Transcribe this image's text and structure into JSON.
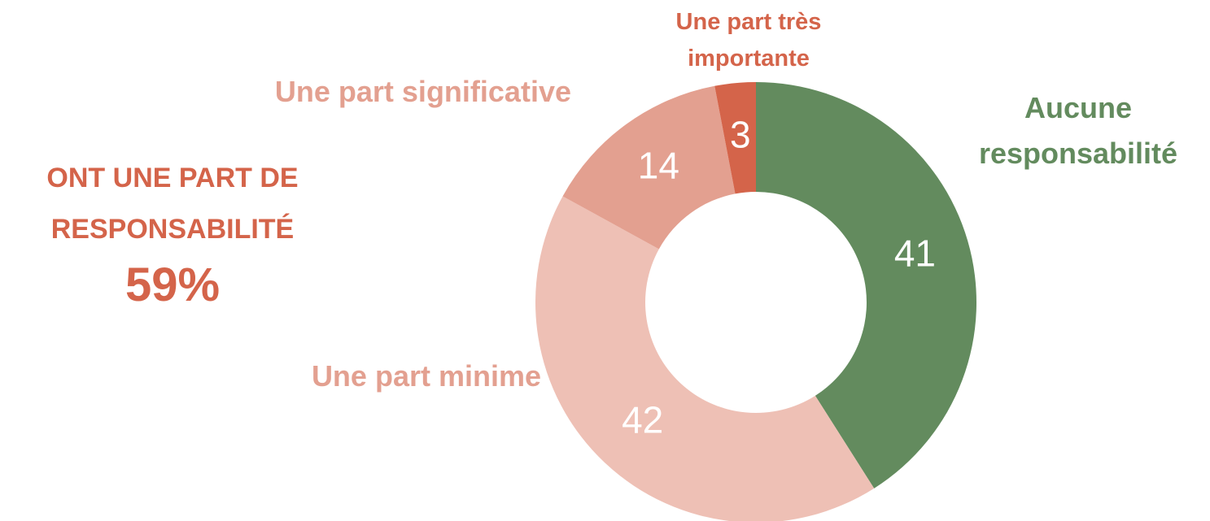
{
  "chart_data": {
    "type": "donut",
    "categories": [
      "Aucune responsabilité",
      "Une part minime",
      "Une part significative",
      "Une part très importante"
    ],
    "values": [
      41,
      42,
      14,
      3
    ],
    "colors": [
      "#638b5e",
      "#eec0b5",
      "#e3a090",
      "#d4644a"
    ],
    "label_colors": [
      "#638b5e",
      "#e3a090",
      "#e3a090",
      "#d4644a"
    ],
    "annotation": {
      "lines": [
        "ONT UNE PART DE",
        "RESPONSABILITÉ"
      ],
      "total": "59%"
    }
  }
}
